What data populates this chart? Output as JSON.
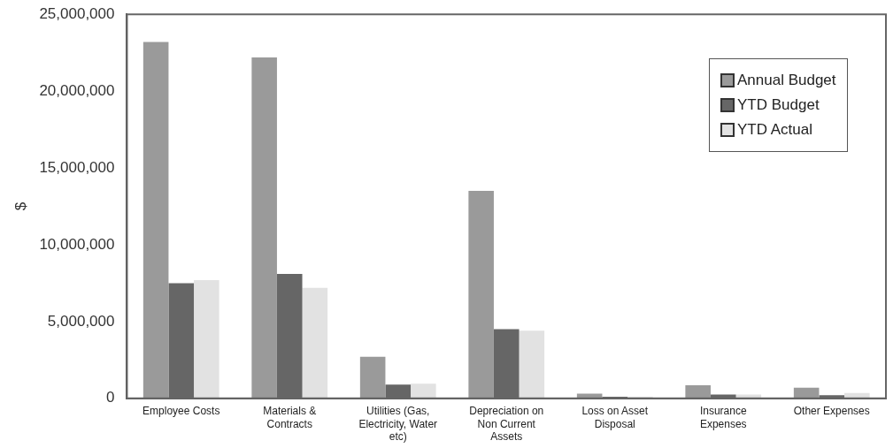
{
  "chart_data": {
    "type": "bar",
    "ylabel": "$",
    "categories": [
      "Employee Costs",
      "Materials & Contracts",
      "Utilities (Gas, Electricity, Water etc)",
      "Depreciation on Non Current Assets",
      "Loss on Asset Disposal",
      "Insurance Expenses",
      "Other Expenses"
    ],
    "series": [
      {
        "name": "Annual Budget",
        "color": "#9a9a9a",
        "values": [
          23200000,
          22200000,
          2700000,
          13500000,
          300000,
          850000,
          700000
        ]
      },
      {
        "name": "YTD Budget",
        "color": "#666666",
        "values": [
          7500000,
          8100000,
          900000,
          4500000,
          100000,
          250000,
          200000
        ]
      },
      {
        "name": "YTD Actual",
        "color": "#e2e2e2",
        "values": [
          7700000,
          7200000,
          950000,
          4400000,
          100000,
          250000,
          350000
        ]
      }
    ],
    "ylim": [
      0,
      25000000
    ],
    "yticks": [
      0,
      {
        "value": 5000000,
        "label": "5,000,000"
      },
      {
        "value": 10000000,
        "label": "10,000,000"
      },
      {
        "value": 15000000,
        "label": "15,000,000"
      },
      {
        "value": 20000000,
        "label": "20,000,000"
      },
      {
        "value": 25000000,
        "label": "25,000,000"
      }
    ],
    "grid": false,
    "legend": "top right"
  }
}
